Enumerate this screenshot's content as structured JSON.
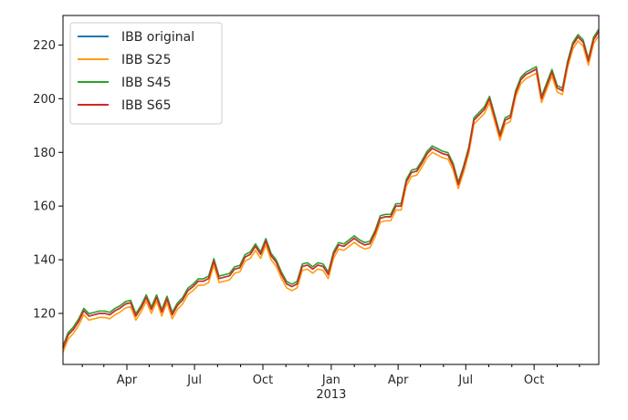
{
  "chart_data": {
    "type": "line",
    "title": "",
    "xlabel": "",
    "ylabel": "",
    "x_range": [
      "2012-01-06",
      "2013-12-27"
    ],
    "ylim": [
      101,
      231
    ],
    "y_ticks": [
      120,
      140,
      160,
      180,
      200,
      220
    ],
    "x_ticks": [
      {
        "date": "2012-04-01",
        "label": "Apr"
      },
      {
        "date": "2012-07-01",
        "label": "Jul"
      },
      {
        "date": "2012-10-01",
        "label": "Oct"
      },
      {
        "date": "2013-01-01",
        "label": "Jan",
        "sublabel": "2013"
      },
      {
        "date": "2013-04-01",
        "label": "Apr"
      },
      {
        "date": "2013-07-01",
        "label": "Jul"
      },
      {
        "date": "2013-10-01",
        "label": "Oct"
      }
    ],
    "grid": false,
    "legend_position": "top-left",
    "series": [
      {
        "name": "IBB original",
        "color": "#1f77b4",
        "offset": 0
      },
      {
        "name": "IBB S25",
        "color": "#ff9f0e",
        "offset": -1.5
      },
      {
        "name": "IBB S45",
        "color": "#2ca02c",
        "offset": 0.9
      },
      {
        "name": "IBB S65",
        "color": "#d62728",
        "offset": 0
      }
    ],
    "base_points": [
      [
        "2012-01-06",
        107
      ],
      [
        "2012-01-13",
        112
      ],
      [
        "2012-01-20",
        114
      ],
      [
        "2012-01-27",
        117
      ],
      [
        "2012-02-03",
        121
      ],
      [
        "2012-02-10",
        119
      ],
      [
        "2012-02-17",
        119.5
      ],
      [
        "2012-02-24",
        120
      ],
      [
        "2012-03-02",
        120
      ],
      [
        "2012-03-09",
        119.5
      ],
      [
        "2012-03-16",
        121
      ],
      [
        "2012-03-23",
        122
      ],
      [
        "2012-03-30",
        123.5
      ],
      [
        "2012-04-06",
        124
      ],
      [
        "2012-04-13",
        119
      ],
      [
        "2012-04-20",
        122
      ],
      [
        "2012-04-27",
        126
      ],
      [
        "2012-05-04",
        121.5
      ],
      [
        "2012-05-11",
        126
      ],
      [
        "2012-05-18",
        120.5
      ],
      [
        "2012-05-25",
        125.5
      ],
      [
        "2012-06-01",
        119.5
      ],
      [
        "2012-06-08",
        123
      ],
      [
        "2012-06-15",
        125
      ],
      [
        "2012-06-22",
        128.5
      ],
      [
        "2012-06-29",
        130
      ],
      [
        "2012-07-06",
        132
      ],
      [
        "2012-07-13",
        132
      ],
      [
        "2012-07-20",
        133
      ],
      [
        "2012-07-27",
        139.5
      ],
      [
        "2012-08-03",
        133
      ],
      [
        "2012-08-10",
        133.5
      ],
      [
        "2012-08-17",
        134
      ],
      [
        "2012-08-24",
        136.5
      ],
      [
        "2012-08-31",
        137
      ],
      [
        "2012-09-07",
        141
      ],
      [
        "2012-09-14",
        142
      ],
      [
        "2012-09-21",
        145
      ],
      [
        "2012-09-28",
        142
      ],
      [
        "2012-10-05",
        147
      ],
      [
        "2012-10-12",
        141.5
      ],
      [
        "2012-10-19",
        139
      ],
      [
        "2012-10-26",
        134.5
      ],
      [
        "2012-11-02",
        131
      ],
      [
        "2012-11-09",
        130
      ],
      [
        "2012-11-16",
        131
      ],
      [
        "2012-11-23",
        137.5
      ],
      [
        "2012-11-30",
        138
      ],
      [
        "2012-12-07",
        136.5
      ],
      [
        "2012-12-14",
        138
      ],
      [
        "2012-12-21",
        137.5
      ],
      [
        "2012-12-28",
        134.5
      ],
      [
        "2013-01-04",
        142
      ],
      [
        "2013-01-11",
        145.5
      ],
      [
        "2013-01-18",
        145
      ],
      [
        "2013-01-25",
        146.5
      ],
      [
        "2013-02-01",
        148
      ],
      [
        "2013-02-08",
        146.5
      ],
      [
        "2013-02-15",
        145.5
      ],
      [
        "2013-02-22",
        146
      ],
      [
        "2013-03-01",
        150
      ],
      [
        "2013-03-08",
        155.5
      ],
      [
        "2013-03-15",
        156
      ],
      [
        "2013-03-22",
        156
      ],
      [
        "2013-03-29",
        160
      ],
      [
        "2013-04-05",
        160
      ],
      [
        "2013-04-12",
        169
      ],
      [
        "2013-04-19",
        172.5
      ],
      [
        "2013-04-26",
        173
      ],
      [
        "2013-05-03",
        176
      ],
      [
        "2013-05-10",
        179.5
      ],
      [
        "2013-05-17",
        181.5
      ],
      [
        "2013-05-24",
        180.5
      ],
      [
        "2013-05-31",
        179.5
      ],
      [
        "2013-06-07",
        179
      ],
      [
        "2013-06-14",
        175
      ],
      [
        "2013-06-21",
        168
      ],
      [
        "2013-06-28",
        174
      ],
      [
        "2013-07-05",
        181
      ],
      [
        "2013-07-12",
        192
      ],
      [
        "2013-07-19",
        194
      ],
      [
        "2013-07-26",
        196
      ],
      [
        "2013-08-02",
        200
      ],
      [
        "2013-08-09",
        193
      ],
      [
        "2013-08-16",
        186
      ],
      [
        "2013-08-23",
        192
      ],
      [
        "2013-08-30",
        193
      ],
      [
        "2013-09-06",
        202
      ],
      [
        "2013-09-13",
        207
      ],
      [
        "2013-09-20",
        209
      ],
      [
        "2013-09-27",
        210
      ],
      [
        "2013-10-04",
        211
      ],
      [
        "2013-10-11",
        200
      ],
      [
        "2013-10-18",
        205
      ],
      [
        "2013-10-25",
        210
      ],
      [
        "2013-11-01",
        204
      ],
      [
        "2013-11-08",
        203
      ],
      [
        "2013-11-15",
        213
      ],
      [
        "2013-11-22",
        220
      ],
      [
        "2013-11-29",
        223
      ],
      [
        "2013-12-06",
        221
      ],
      [
        "2013-12-13",
        214
      ],
      [
        "2013-12-20",
        222
      ],
      [
        "2013-12-27",
        225
      ]
    ]
  }
}
